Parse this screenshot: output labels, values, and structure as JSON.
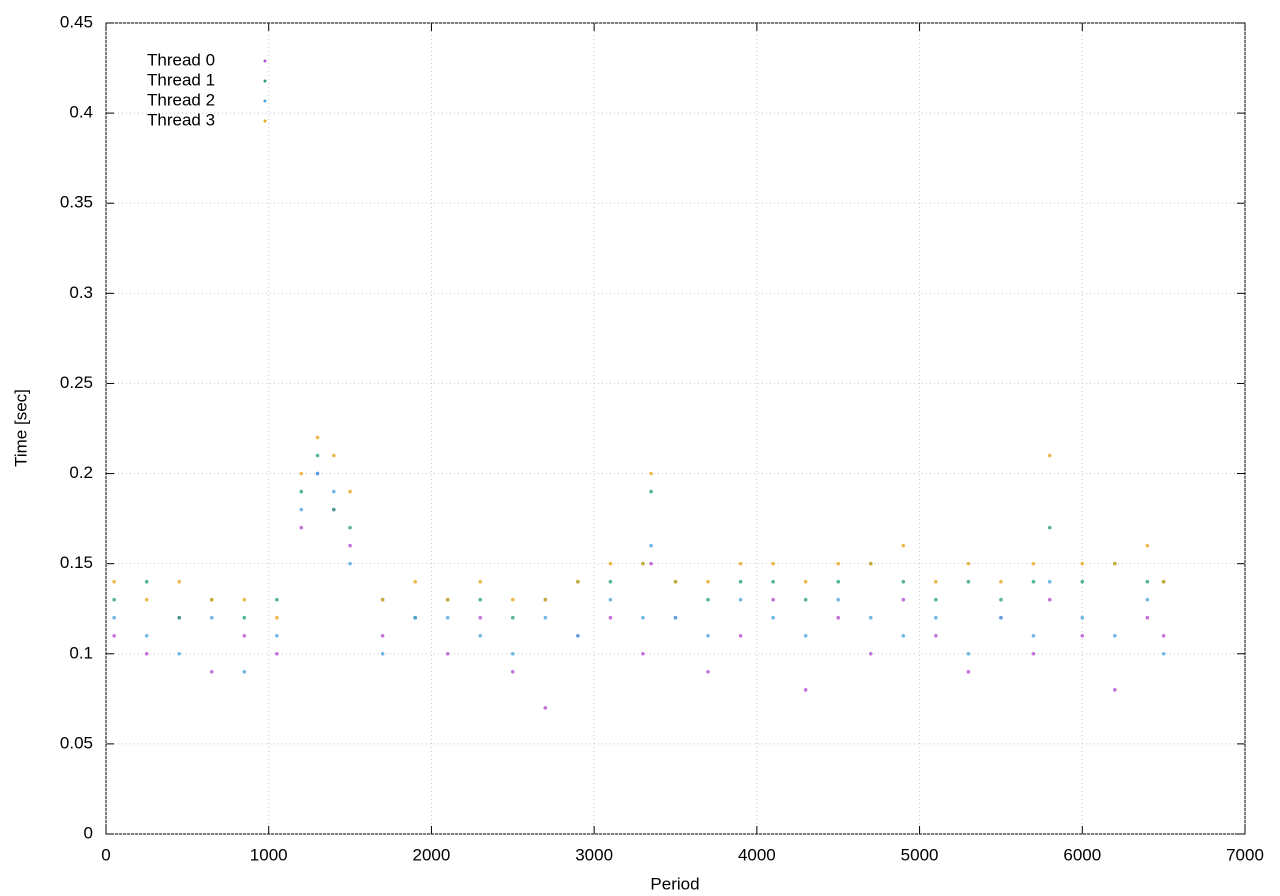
{
  "chart_data": {
    "type": "scatter",
    "x_label": "Period",
    "y_label": "Time [sec]",
    "xlim": [
      0,
      7000
    ],
    "xticks": [
      0,
      1000,
      2000,
      3000,
      4000,
      5000,
      6000,
      7000
    ],
    "ylim": [
      0,
      0.45
    ],
    "yticks": [
      0,
      0.05,
      0.1,
      0.15,
      0.2,
      0.25,
      0.3,
      0.35,
      0.4,
      0.45
    ],
    "grid": true,
    "legend": "top-left",
    "x": [
      50,
      250,
      450,
      650,
      850,
      1050,
      1200,
      1300,
      1400,
      1500,
      1700,
      1900,
      2100,
      2300,
      2500,
      2700,
      2900,
      3100,
      3300,
      3350,
      3500,
      3700,
      3900,
      4100,
      4300,
      4500,
      4700,
      4900,
      5100,
      5300,
      5500,
      5700,
      5800,
      6000,
      6200,
      6400,
      6500
    ],
    "series": [
      {
        "name": "Thread 0",
        "color": "#b44fd6",
        "values": [
          0.11,
          0.1,
          0.12,
          0.09,
          0.11,
          0.1,
          0.17,
          0.2,
          0.18,
          0.16,
          0.11,
          0.12,
          0.1,
          0.12,
          0.09,
          0.07,
          0.11,
          0.12,
          0.1,
          0.15,
          0.12,
          0.09,
          0.11,
          0.13,
          0.08,
          0.12,
          0.1,
          0.13,
          0.11,
          0.09,
          0.12,
          0.1,
          0.13,
          0.11,
          0.08,
          0.12,
          0.11
        ]
      },
      {
        "name": "Thread 1",
        "color": "#2aa37a",
        "values": [
          0.13,
          0.14,
          0.12,
          0.13,
          0.12,
          0.13,
          0.19,
          0.21,
          0.18,
          0.17,
          0.13,
          0.12,
          0.13,
          0.13,
          0.12,
          0.13,
          0.14,
          0.14,
          0.15,
          0.19,
          0.14,
          0.13,
          0.14,
          0.14,
          0.13,
          0.14,
          0.15,
          0.14,
          0.13,
          0.14,
          0.13,
          0.14,
          0.17,
          0.14,
          0.15,
          0.14,
          0.14
        ]
      },
      {
        "name": "Thread 2",
        "color": "#4aa8e0",
        "values": [
          0.12,
          0.11,
          0.1,
          0.12,
          0.09,
          0.11,
          0.18,
          0.2,
          0.19,
          0.15,
          0.1,
          0.12,
          0.12,
          0.11,
          0.1,
          0.12,
          0.11,
          0.13,
          0.12,
          0.16,
          0.12,
          0.11,
          0.13,
          0.12,
          0.11,
          0.13,
          0.12,
          0.11,
          0.12,
          0.1,
          0.12,
          0.11,
          0.14,
          0.12,
          0.11,
          0.13,
          0.1
        ]
      },
      {
        "name": "Thread 3",
        "color": "#e6a820",
        "values": [
          0.14,
          0.13,
          0.14,
          0.13,
          0.13,
          0.12,
          0.2,
          0.22,
          0.21,
          0.19,
          0.13,
          0.14,
          0.13,
          0.14,
          0.13,
          0.13,
          0.14,
          0.15,
          0.15,
          0.2,
          0.14,
          0.14,
          0.15,
          0.15,
          0.14,
          0.15,
          0.15,
          0.16,
          0.14,
          0.15,
          0.14,
          0.15,
          0.21,
          0.15,
          0.15,
          0.16,
          0.14
        ]
      }
    ]
  }
}
